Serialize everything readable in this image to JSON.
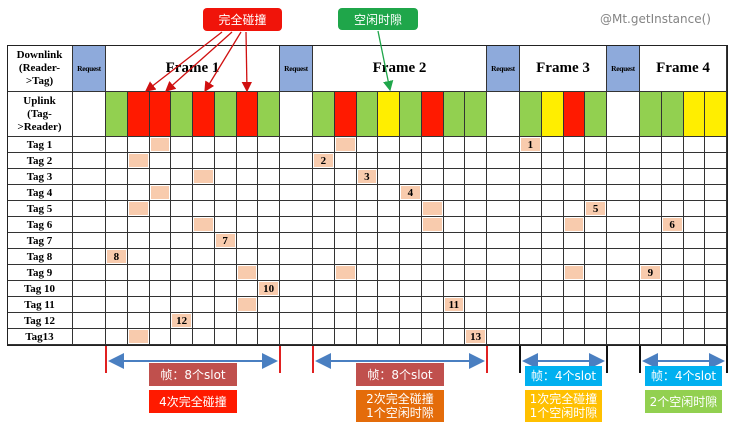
{
  "callouts": {
    "collision": {
      "label": "完全碰撞",
      "color": "#f0140a"
    },
    "idle": {
      "label": "空闲时隙",
      "color": "#1fa64a"
    }
  },
  "row_headers": {
    "downlink": [
      "Downlink",
      "(Reader-",
      ">Tag)"
    ],
    "uplink": [
      "Uplink",
      "(Tag-",
      ">Reader)"
    ]
  },
  "request_label": "Request",
  "colors": {
    "green": "#92d050",
    "red": "#ff1a00",
    "yellow": "#ffee00",
    "request": "#8eaadb",
    "tag_mark": "#f8cbad"
  },
  "frames": [
    {
      "label": "Frame 1",
      "slots": [
        "green",
        "red",
        "red",
        "green",
        "red",
        "green",
        "red",
        "green"
      ]
    },
    {
      "label": "Frame 2",
      "slots": [
        "green",
        "red",
        "green",
        "yellow",
        "green",
        "red",
        "green",
        "green"
      ]
    },
    {
      "label": "Frame 3",
      "slots": [
        "green",
        "yellow",
        "red",
        "green"
      ]
    },
    {
      "label": "Frame 4",
      "slots": [
        "green",
        "green",
        "yellow",
        "yellow"
      ]
    }
  ],
  "tags": [
    {
      "label": "Tag 1",
      "marks": [
        {
          "frame": 0,
          "slot": 2
        },
        {
          "frame": 1,
          "slot": 1
        },
        {
          "frame": 2,
          "slot": 0,
          "text": "1"
        }
      ]
    },
    {
      "label": "Tag 2",
      "marks": [
        {
          "frame": 0,
          "slot": 1
        },
        {
          "frame": 1,
          "slot": 0,
          "text": "2"
        }
      ]
    },
    {
      "label": "Tag 3",
      "marks": [
        {
          "frame": 0,
          "slot": 4
        },
        {
          "frame": 1,
          "slot": 2,
          "text": "3"
        }
      ]
    },
    {
      "label": "Tag 4",
      "marks": [
        {
          "frame": 0,
          "slot": 2
        },
        {
          "frame": 1,
          "slot": 4,
          "text": "4"
        }
      ]
    },
    {
      "label": "Tag 5",
      "marks": [
        {
          "frame": 0,
          "slot": 1
        },
        {
          "frame": 1,
          "slot": 5
        },
        {
          "frame": 2,
          "slot": 3,
          "text": "5"
        }
      ]
    },
    {
      "label": "Tag 6",
      "marks": [
        {
          "frame": 0,
          "slot": 4
        },
        {
          "frame": 1,
          "slot": 5
        },
        {
          "frame": 2,
          "slot": 2
        },
        {
          "frame": 3,
          "slot": 1,
          "text": "6"
        }
      ]
    },
    {
      "label": "Tag 7",
      "marks": [
        {
          "frame": 0,
          "slot": 5,
          "text": "7"
        }
      ]
    },
    {
      "label": "Tag 8",
      "marks": [
        {
          "frame": 0,
          "slot": 0,
          "text": "8"
        }
      ]
    },
    {
      "label": "Tag 9",
      "marks": [
        {
          "frame": 0,
          "slot": 6
        },
        {
          "frame": 1,
          "slot": 1
        },
        {
          "frame": 2,
          "slot": 2
        },
        {
          "frame": 3,
          "slot": 0,
          "text": "9"
        }
      ]
    },
    {
      "label": "Tag 10",
      "marks": [
        {
          "frame": 0,
          "slot": 7,
          "text": "10"
        }
      ]
    },
    {
      "label": "Tag 11",
      "marks": [
        {
          "frame": 0,
          "slot": 6
        },
        {
          "frame": 1,
          "slot": 6,
          "text": "11"
        }
      ]
    },
    {
      "label": "Tag 12",
      "marks": [
        {
          "frame": 0,
          "slot": 3,
          "text": "12"
        }
      ]
    },
    {
      "label": "Tag13",
      "marks": [
        {
          "frame": 0,
          "slot": 1
        },
        {
          "frame": 1,
          "slot": 7,
          "text": "13"
        }
      ]
    }
  ],
  "summaries": [
    {
      "frame_size": "帧：8个slot",
      "frame_size_color": "#c0504d",
      "result": [
        "4次完全碰撞"
      ],
      "result_color": "#ff1a00",
      "bracket_color": "#e02020"
    },
    {
      "frame_size": "帧：8个slot",
      "frame_size_color": "#c0504d",
      "result": [
        "2次完全碰撞",
        "1个空闲时隙"
      ],
      "result_color": "#e46c0a",
      "bracket_color": "#e02020"
    },
    {
      "frame_size": "帧：4个slot",
      "frame_size_color": "#00b0f0",
      "result": [
        "1次完全碰撞",
        "1个空闲时隙"
      ],
      "result_color": "#ffc000",
      "bracket_color": "#111111"
    },
    {
      "frame_size": "帧：4个slot",
      "frame_size_color": "#00b0f0",
      "result": [
        "2个空闲时隙"
      ],
      "result_color": "#92d050",
      "bracket_color": "#111111"
    }
  ],
  "watermark": "@Mt.getInstance()"
}
